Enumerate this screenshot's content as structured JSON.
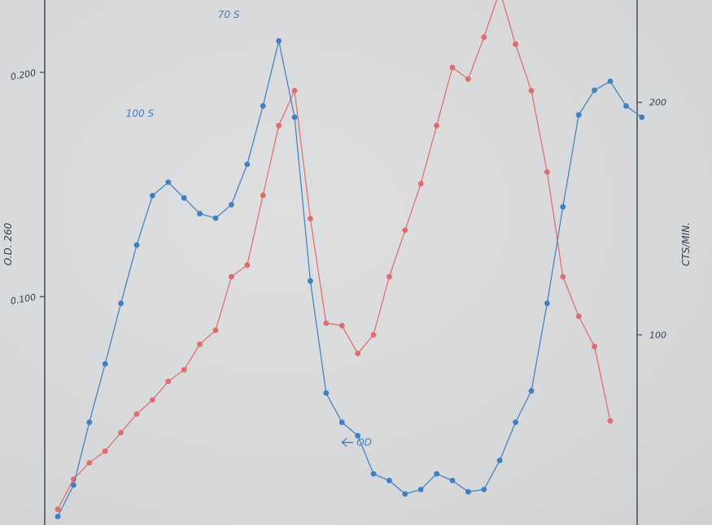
{
  "chart_data": {
    "type": "line",
    "title": "",
    "xlabel": "",
    "y_left": {
      "label": "O.D. 260",
      "ticks": [
        0.1,
        0.2
      ],
      "tick_labels": [
        "0.100",
        "0.200"
      ],
      "range": [
        0.0,
        0.225
      ]
    },
    "y_right": {
      "label": "CTS/MIN.",
      "ticks": [
        100,
        200
      ],
      "tick_labels": [
        "100",
        "200"
      ],
      "range": [
        20,
        237
      ]
    },
    "x_range": [
      -1,
      37
    ],
    "grid": false,
    "annotations": [
      {
        "text": "100 S",
        "series": "od",
        "x": 7,
        "y": 0.178
      },
      {
        "text": "70 S",
        "series": "od",
        "x": 12,
        "y": 0.225
      },
      {
        "text": "OD",
        "series": "od",
        "x": 18,
        "y": 0.035
      }
    ],
    "series": [
      {
        "key": "od",
        "color": "#3f7fc4",
        "axis": "left",
        "x": [
          0,
          1,
          2,
          3,
          4,
          5,
          6,
          7,
          8,
          9,
          10,
          11,
          12,
          13,
          14,
          15,
          16,
          17,
          18,
          19,
          20,
          21,
          22,
          23,
          24,
          25,
          26,
          27,
          28,
          29,
          30,
          31,
          32,
          33,
          34,
          35,
          36,
          37
        ],
        "y": [
          0.002,
          0.016,
          0.044,
          0.07,
          0.097,
          0.123,
          0.145,
          0.151,
          0.144,
          0.137,
          0.135,
          0.141,
          0.159,
          0.185,
          0.214,
          0.18,
          0.107,
          0.057,
          0.044,
          0.038,
          0.021,
          0.018,
          0.012,
          0.014,
          0.021,
          0.018,
          0.013,
          0.014,
          0.027,
          0.044,
          0.058,
          0.097,
          0.14,
          0.181,
          0.192,
          0.196,
          0.185,
          0.18
        ]
      },
      {
        "key": "cts",
        "color": "#e06c6c",
        "axis": "right",
        "x": [
          0,
          1,
          2,
          3,
          4,
          5,
          6,
          7,
          8,
          9,
          10,
          11,
          12,
          13,
          14,
          15,
          16,
          17,
          18,
          19,
          20,
          21,
          22,
          23,
          24,
          25,
          26,
          27,
          28,
          29,
          30,
          31,
          32,
          33,
          34,
          35
        ],
        "y": [
          25,
          38,
          45,
          50,
          58,
          66,
          72,
          80,
          85,
          96,
          102,
          125,
          130,
          160,
          190,
          205,
          150,
          105,
          104,
          92,
          100,
          125,
          145,
          165,
          190,
          215,
          210,
          228,
          248,
          225,
          205,
          170,
          125,
          108,
          95,
          63
        ]
      }
    ]
  }
}
